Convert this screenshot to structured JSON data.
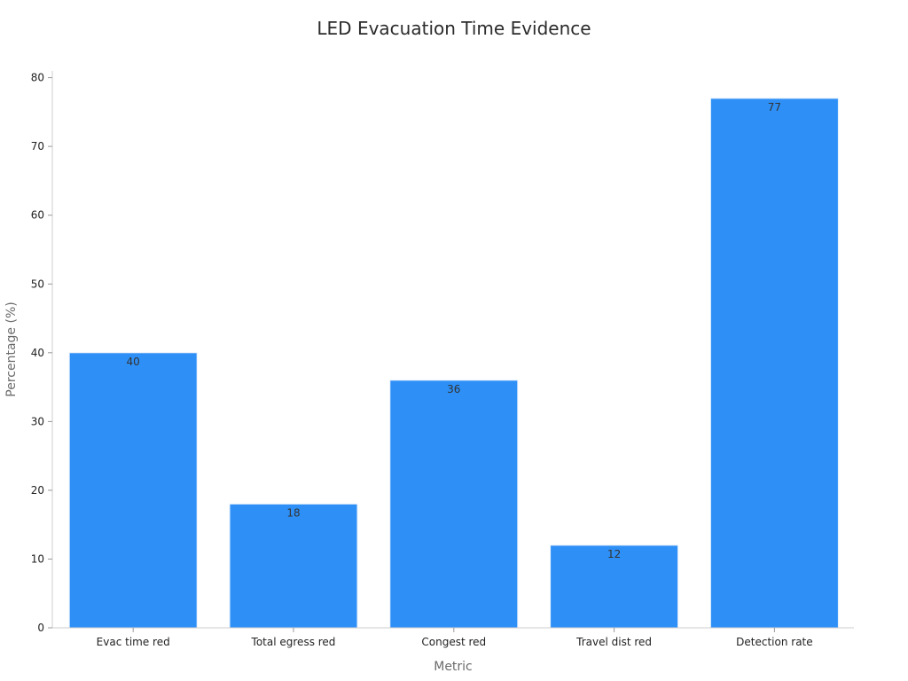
{
  "chart_data": {
    "type": "bar",
    "title": "LED Evacuation Time Evidence",
    "xlabel": "Metric",
    "ylabel": "Percentage (%)",
    "categories": [
      "Evac time red",
      "Total egress red",
      "Congest red",
      "Travel dist red",
      "Detection rate"
    ],
    "values": [
      40,
      18,
      36,
      12,
      77
    ],
    "ylim": [
      0,
      80
    ],
    "yticks": [
      0,
      10,
      20,
      30,
      40,
      50,
      60,
      70,
      80
    ],
    "data_labels": true,
    "grid": false,
    "legend": "none",
    "bar_color": "#2e90f7",
    "axis_color": "#cccccc"
  }
}
